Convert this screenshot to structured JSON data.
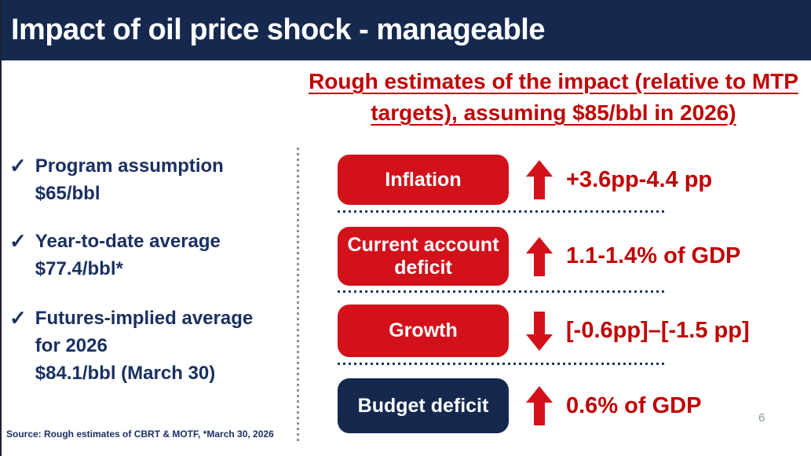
{
  "title_bar": {
    "title": "Impact of oil price shock - manageable"
  },
  "left_panel": {
    "check_glyph": "✓",
    "bullets": [
      {
        "lines": [
          "Program assumption",
          "$65/bbl"
        ]
      },
      {
        "lines": [
          "Year-to-date average",
          "$77.4/bbl*"
        ]
      },
      {
        "lines": [
          "Futures-implied average",
          "for 2026",
          "$84.1/bbl (March 30)"
        ]
      }
    ],
    "source": "Source: Rough estimates of CBRT & MOTF, *March 30, 2026"
  },
  "right_panel": {
    "heading": "Rough estimates of the impact (relative to MTP targets), assuming $85/bbl in 2026)",
    "rows": [
      {
        "label": "Inflation",
        "direction": "up",
        "value": "+3.6pp-4.4 pp",
        "box_color": "#D2111B"
      },
      {
        "label": "Current account deficit",
        "direction": "up",
        "value": "1.1-1.4% of GDP",
        "box_color": "#D2111B"
      },
      {
        "label": "Growth",
        "direction": "down",
        "value": "[-0.6pp]–[-1.5 pp]",
        "box_color": "#D2111B"
      },
      {
        "label": "Budget deficit",
        "direction": "up",
        "value": "0.6% of GDP",
        "box_color": "#15294F"
      }
    ]
  },
  "footer": {
    "page_number": "6"
  },
  "colors": {
    "title_bar_navy": "#15294F",
    "bullet_navy": "#1A3062",
    "box_red": "#D2111B",
    "value_red": "#C00000",
    "dotted_line_navy": "#1F3864",
    "divider_gray": "#8E8E8E"
  }
}
